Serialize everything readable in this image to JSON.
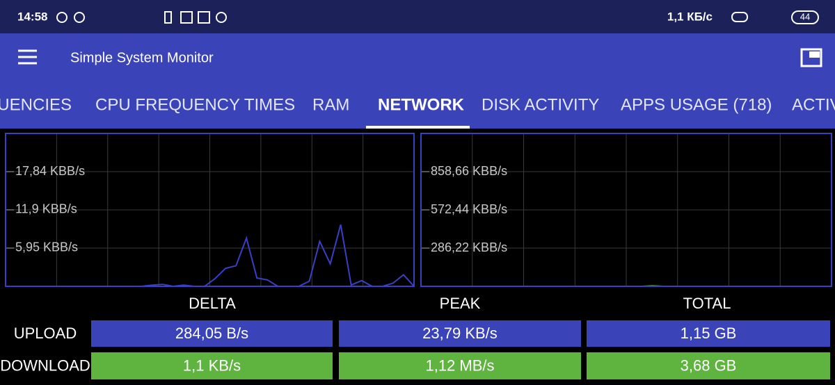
{
  "status_bar": {
    "time": "14:58",
    "speed": "1,1 КБ/с",
    "battery": "44"
  },
  "app_bar": {
    "title": "Simple System Monitor"
  },
  "tabs": {
    "items": [
      "QUENCIES",
      "CPU FREQUENCY TIMES",
      "RAM",
      "NETWORK",
      "DISK ACTIVITY",
      "APPS USAGE (718)",
      "ACTIV"
    ],
    "selected": 3
  },
  "chart_data": [
    {
      "type": "line",
      "color": "#3b3fc4",
      "grid": true,
      "values": [
        0,
        0,
        0,
        0,
        0,
        0,
        0,
        0,
        0,
        0,
        0,
        0,
        0,
        0,
        0.2,
        0.3,
        0,
        0.2,
        0,
        0,
        1.2,
        2.8,
        3.2,
        7.5,
        1.3,
        1.0,
        0,
        0,
        0,
        0.8,
        7.0,
        3.5,
        9.6,
        0.2,
        0.9,
        0,
        0,
        0.5,
        1.8,
        0
      ],
      "ylim": [
        0,
        23.79
      ],
      "yticks": [
        {
          "value": 5.95,
          "label": "5,95 KBB/s"
        },
        {
          "value": 11.9,
          "label": "11,9 KBB/s"
        },
        {
          "value": 17.84,
          "label": "17,84 KBB/s"
        }
      ]
    },
    {
      "type": "line",
      "color": "#5fb33f",
      "grid": true,
      "values": [
        0,
        0,
        0,
        0,
        0,
        0,
        0,
        0,
        0,
        0,
        0,
        0,
        0,
        0,
        0,
        0,
        0,
        0,
        0,
        0,
        0,
        0,
        4,
        0,
        0,
        0,
        0,
        0,
        0,
        0,
        0,
        0,
        0,
        0,
        0,
        0,
        0,
        0,
        0,
        0
      ],
      "ylim": [
        0,
        1144.88
      ],
      "yticks": [
        {
          "value": 286.22,
          "label": "286,22 KBB/s"
        },
        {
          "value": 572.44,
          "label": "572,44 KBB/s"
        },
        {
          "value": 858.66,
          "label": "858,66 KBB/s"
        }
      ]
    }
  ],
  "table": {
    "header": [
      "DELTA",
      "PEAK",
      "TOTAL"
    ],
    "rows": [
      [
        "UPLOAD",
        "284,05 B/s",
        "23,79 KB/s",
        "1,15 GB"
      ],
      [
        "DOWNLOAD",
        "1,1 KB/s",
        "1,12 MB/s",
        "3,68 GB"
      ]
    ]
  }
}
